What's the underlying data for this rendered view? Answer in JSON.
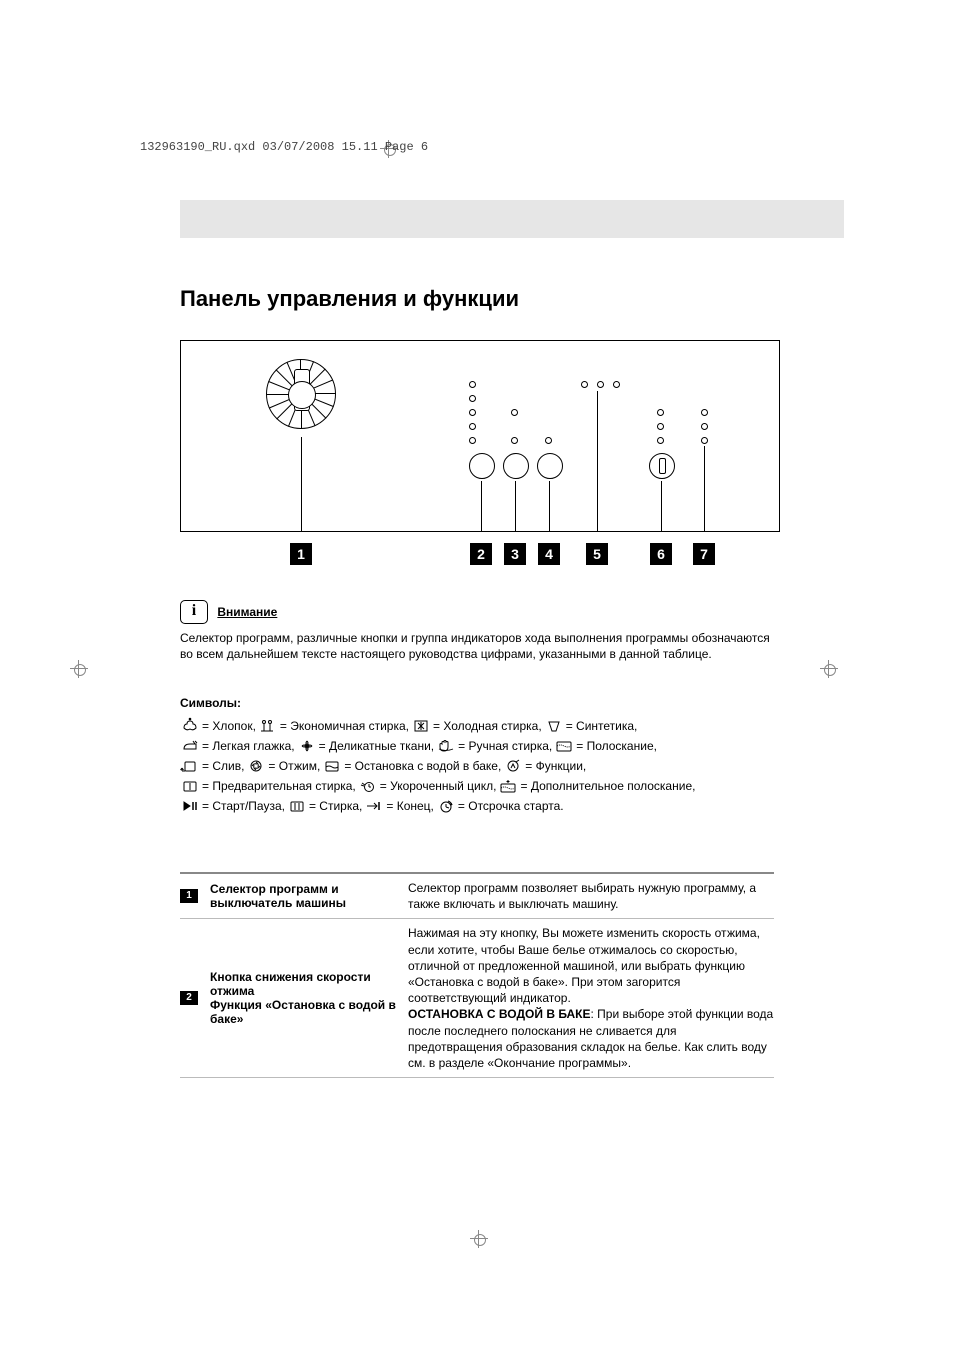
{
  "running_head": "132963190_RU.qxd  03/07/2008  15.11  Page 6",
  "title": "Панель управления и функции",
  "callouts": [
    "1",
    "2",
    "3",
    "4",
    "5",
    "6",
    "7"
  ],
  "attention": {
    "label": "Внимание",
    "text": "Селектор программ, различные кнопки и группа индикаторов хода выполнения программы обозначаются во всем дальнейшем тексте настоящего руководства цифрами, указанными в данной таблице."
  },
  "symbols_header": "Символы:",
  "symbol_rows": [
    [
      {
        "icon": "cotton",
        "text": " = Хлопок,  "
      },
      {
        "icon": "eco",
        "text": " = Экономичная стирка, "
      },
      {
        "icon": "cold",
        "text": " = Холодная стирка,  "
      },
      {
        "icon": "synth",
        "text": " = Синтетика,"
      }
    ],
    [
      {
        "icon": "easy-iron",
        "text": " = Легкая глажка,  "
      },
      {
        "icon": "delicate",
        "text": " = Деликатные ткани,  "
      },
      {
        "icon": "handwash",
        "text": " = Ручная стирка,  "
      },
      {
        "icon": "rinse",
        "text": " = Полоскание,"
      }
    ],
    [
      {
        "icon": "drain",
        "text": " = Слив,  "
      },
      {
        "icon": "spin",
        "text": " = Отжим,  "
      },
      {
        "icon": "rinse-hold",
        "text": " = Остановка с водой в баке,  "
      },
      {
        "icon": "functions",
        "text": " = Функции,"
      }
    ],
    [
      {
        "icon": "prewash",
        "text": " = Предварительная стирка,  "
      },
      {
        "icon": "short",
        "text": " = Укороченный цикл,  "
      },
      {
        "icon": "extra-rinse",
        "text": " = Дополнительное полоскание,"
      }
    ],
    [
      {
        "icon": "start-pause",
        "text": " = Старт/Пауза,  "
      },
      {
        "icon": "wash",
        "text": " = Стирка,  "
      },
      {
        "icon": "end",
        "text": " = Конец,  "
      },
      {
        "icon": "delay",
        "text": " = Отсрочка старта."
      }
    ]
  ],
  "table": [
    {
      "num": "1",
      "name": "Селектор программ и выключатель машины",
      "desc": "Селектор программ позволяет выбирать нужную программу, а также включать и выключать машину."
    },
    {
      "num": "2",
      "name": "Кнопка снижения скорости отжима\nФункция «Остановка с водой в баке»",
      "desc": "Нажимая на эту кнопку, Вы можете изменить скорость отжима, если хотите, чтобы Ваше белье отжималось со скоростью, отличной от предложенной машиной, или выбрать функцию «Остановка с водой в баке». При этом загорится соответствующий индикатор.\n<b>ОСТАНОВКА С ВОДОЙ В БАКЕ</b>: При выборе этой функции вода после последнего полоскания не сливается для предотвращения образования складок на белье. Как слить воду см. в разделе «Окончание программы»."
    }
  ]
}
